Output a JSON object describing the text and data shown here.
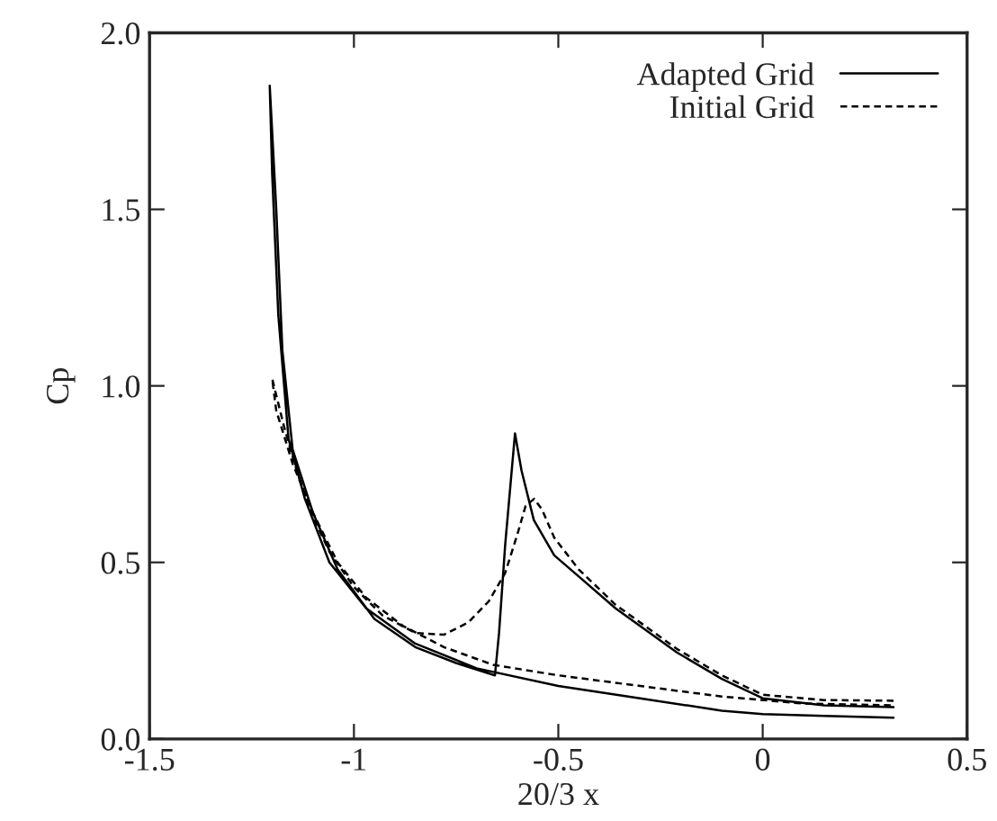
{
  "chart_data": {
    "type": "line",
    "xlabel": "20/3 x",
    "ylabel": "Cp",
    "xlim": [
      -1.5,
      0.5
    ],
    "ylim": [
      0,
      2.0
    ],
    "xticks": [
      {
        "value": -1.5,
        "label": "-1.5"
      },
      {
        "value": -1,
        "label": "-1"
      },
      {
        "value": -0.5,
        "label": "-0.5"
      },
      {
        "value": 0,
        "label": "0"
      },
      {
        "value": 0.5,
        "label": "0.5"
      }
    ],
    "yticks": [
      {
        "value": 0,
        "label": "0.0"
      },
      {
        "value": 0.5,
        "label": "0.5"
      },
      {
        "value": 1.0,
        "label": "1.0"
      },
      {
        "value": 1.5,
        "label": "1.5"
      },
      {
        "value": 2.0,
        "label": "2.0"
      }
    ],
    "grid": false,
    "legend": "top right",
    "marker": "none",
    "series": [
      {
        "name": "Adapted Grid",
        "color": "#000000",
        "line_style": "solid",
        "x": [
          0.32,
          0.15,
          0,
          -0.1,
          -0.21,
          -0.36,
          -0.45,
          -0.51,
          -0.56,
          -0.59,
          -0.606,
          -0.63,
          -0.645,
          -0.655,
          -0.75,
          -0.85,
          -0.95,
          -1.04,
          -1.1,
          -1.15,
          -1.175,
          -1.19,
          -1.206,
          -1.2,
          -1.185,
          -1.16,
          -1.12,
          -1.06,
          -0.97,
          -0.85,
          -0.7,
          -0.5,
          -0.3,
          -0.1,
          0,
          0.15,
          0.32
        ],
        "values": [
          0.09,
          0.095,
          0.115,
          0.17,
          0.245,
          0.37,
          0.46,
          0.52,
          0.62,
          0.76,
          0.865,
          0.55,
          0.3,
          0.18,
          0.215,
          0.26,
          0.34,
          0.48,
          0.64,
          0.82,
          1.1,
          1.5,
          1.85,
          1.6,
          1.2,
          0.85,
          0.68,
          0.5,
          0.37,
          0.27,
          0.2,
          0.15,
          0.115,
          0.08,
          0.07,
          0.065,
          0.06
        ]
      },
      {
        "name": "Initial Grid",
        "color": "#000000",
        "line_style": "dashed",
        "x": [
          0.32,
          0.15,
          0,
          -0.1,
          -0.21,
          -0.36,
          -0.45,
          -0.51,
          -0.54,
          -0.559,
          -0.58,
          -0.6,
          -0.63,
          -0.67,
          -0.72,
          -0.78,
          -0.85,
          -0.93,
          -1.0,
          -1.06,
          -1.1,
          -1.14,
          -1.17,
          -1.2,
          -1.19,
          -1.15,
          -1.1,
          -1.04,
          -0.97,
          -0.88,
          -0.78,
          -0.66,
          -0.5,
          -0.3,
          -0.1,
          0.1,
          0.32
        ],
        "values": [
          0.108,
          0.11,
          0.125,
          0.18,
          0.255,
          0.38,
          0.48,
          0.57,
          0.65,
          0.68,
          0.66,
          0.58,
          0.47,
          0.39,
          0.33,
          0.295,
          0.3,
          0.35,
          0.43,
          0.53,
          0.63,
          0.76,
          0.88,
          1.02,
          0.93,
          0.78,
          0.64,
          0.5,
          0.4,
          0.32,
          0.26,
          0.21,
          0.18,
          0.15,
          0.12,
          0.1,
          0.095
        ]
      }
    ]
  }
}
